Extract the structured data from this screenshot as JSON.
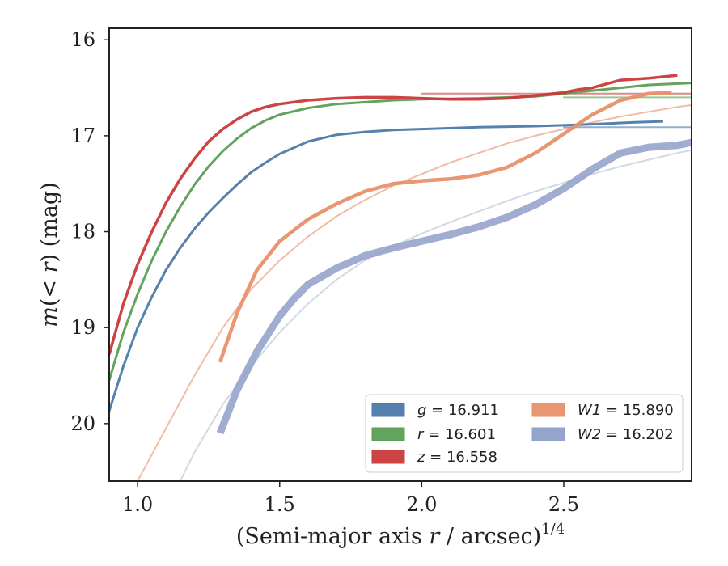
{
  "chart_data": {
    "type": "line",
    "title": "",
    "xlabel": "(Semi-major axis r / arcsec)",
    "xlabel_var": "r",
    "xlabel_exponent": "1/4",
    "ylabel": "m(< r) (mag)",
    "xlim": [
      0.9,
      2.95
    ],
    "ylim": [
      20.6,
      15.88
    ],
    "y_inverted": true,
    "xticks": [
      1.0,
      1.5,
      2.0,
      2.5
    ],
    "xtick_labels": [
      "1.0",
      "1.5",
      "2.0",
      "2.5"
    ],
    "yticks": [
      16,
      17,
      18,
      19,
      20
    ],
    "ytick_labels": [
      "16",
      "17",
      "18",
      "19",
      "20"
    ],
    "grid": false,
    "legend_placement": "lower-right",
    "series": [
      {
        "name": "g = 16.911",
        "band": "g",
        "mag": "16.911",
        "color": "#4c7aa8",
        "x": [
          0.9,
          0.95,
          1.0,
          1.05,
          1.1,
          1.15,
          1.2,
          1.25,
          1.3,
          1.35,
          1.4,
          1.45,
          1.5,
          1.6,
          1.7,
          1.8,
          1.9,
          2.0,
          2.2,
          2.4,
          2.6,
          2.75,
          2.85
        ],
        "y": [
          19.87,
          19.4,
          19.0,
          18.68,
          18.4,
          18.17,
          17.97,
          17.8,
          17.65,
          17.51,
          17.38,
          17.28,
          17.19,
          17.06,
          16.99,
          16.96,
          16.94,
          16.93,
          16.91,
          16.9,
          16.88,
          16.86,
          16.85
        ]
      },
      {
        "name": "r = 16.601",
        "band": "r",
        "mag": "16.601",
        "color": "#5a9e55",
        "x": [
          0.9,
          0.95,
          1.0,
          1.05,
          1.1,
          1.15,
          1.2,
          1.25,
          1.3,
          1.35,
          1.4,
          1.45,
          1.5,
          1.6,
          1.7,
          1.8,
          1.9,
          2.0,
          2.2,
          2.4,
          2.6,
          2.8,
          2.95
        ],
        "y": [
          19.55,
          19.05,
          18.65,
          18.3,
          18.0,
          17.74,
          17.51,
          17.32,
          17.16,
          17.03,
          16.92,
          16.84,
          16.78,
          16.71,
          16.67,
          16.65,
          16.63,
          16.62,
          16.61,
          16.59,
          16.53,
          16.47,
          16.45
        ]
      },
      {
        "name": "z = 16.558",
        "band": "z",
        "mag": "16.558",
        "color": "#c93a3a",
        "x": [
          0.9,
          0.95,
          1.0,
          1.05,
          1.1,
          1.15,
          1.2,
          1.25,
          1.3,
          1.35,
          1.4,
          1.45,
          1.5,
          1.6,
          1.7,
          1.8,
          1.9,
          2.0,
          2.1,
          2.2,
          2.3,
          2.4,
          2.5,
          2.55,
          2.6,
          2.65,
          2.7,
          2.8,
          2.9
        ],
        "y": [
          19.28,
          18.75,
          18.34,
          18.0,
          17.7,
          17.45,
          17.24,
          17.06,
          16.93,
          16.83,
          16.75,
          16.7,
          16.67,
          16.63,
          16.61,
          16.6,
          16.6,
          16.61,
          16.62,
          16.62,
          16.61,
          16.58,
          16.55,
          16.52,
          16.5,
          16.46,
          16.42,
          16.4,
          16.37
        ]
      },
      {
        "name": "W1 = 15.890",
        "band": "W1",
        "mag": "15.890",
        "color": "#e8906a",
        "x": [
          1.29,
          1.35,
          1.42,
          1.5,
          1.6,
          1.7,
          1.8,
          1.9,
          2.0,
          2.1,
          2.2,
          2.3,
          2.4,
          2.5,
          2.6,
          2.7,
          2.8,
          2.88
        ],
        "y": [
          19.36,
          18.85,
          18.4,
          18.1,
          17.87,
          17.71,
          17.58,
          17.5,
          17.47,
          17.45,
          17.41,
          17.33,
          17.18,
          16.98,
          16.78,
          16.63,
          16.56,
          16.55
        ]
      },
      {
        "name": "W2 = 16.202",
        "band": "W2",
        "mag": "16.202",
        "color": "#8f9fc8",
        "x": [
          1.29,
          1.35,
          1.42,
          1.5,
          1.55,
          1.6,
          1.7,
          1.8,
          1.9,
          2.0,
          2.1,
          2.2,
          2.3,
          2.4,
          2.5,
          2.6,
          2.7,
          2.8,
          2.9,
          2.95
        ],
        "y": [
          20.1,
          19.65,
          19.25,
          18.88,
          18.7,
          18.55,
          18.38,
          18.25,
          18.17,
          18.1,
          18.03,
          17.95,
          17.85,
          17.72,
          17.55,
          17.35,
          17.18,
          17.12,
          17.1,
          17.07
        ]
      }
    ],
    "models": [
      {
        "band": "g",
        "color": "#4c7aa8",
        "x": [
          2.5,
          2.95
        ],
        "y": [
          16.91,
          16.91
        ]
      },
      {
        "band": "r",
        "color": "#5a9e55",
        "x": [
          2.5,
          2.95
        ],
        "y": [
          16.6,
          16.6
        ]
      },
      {
        "band": "z",
        "color": "#c93a3a",
        "x": [
          2.0,
          2.95
        ],
        "y": [
          16.56,
          16.56
        ]
      },
      {
        "band": "W1",
        "color": "#e8906a",
        "x": [
          1.0,
          1.1,
          1.2,
          1.3,
          1.4,
          1.5,
          1.6,
          1.7,
          1.8,
          1.9,
          2.0,
          2.1,
          2.2,
          2.3,
          2.4,
          2.5,
          2.6,
          2.7,
          2.8,
          2.9,
          2.95
        ],
        "y": [
          20.6,
          20.05,
          19.5,
          19.0,
          18.6,
          18.3,
          18.05,
          17.84,
          17.67,
          17.52,
          17.4,
          17.28,
          17.18,
          17.08,
          17.0,
          16.93,
          16.86,
          16.8,
          16.75,
          16.7,
          16.68
        ]
      },
      {
        "band": "W2",
        "color": "#b3bfd4",
        "x": [
          1.15,
          1.2,
          1.3,
          1.4,
          1.5,
          1.6,
          1.7,
          1.8,
          1.9,
          2.0,
          2.1,
          2.2,
          2.3,
          2.4,
          2.5,
          2.6,
          2.7,
          2.8,
          2.9,
          2.95
        ],
        "y": [
          20.6,
          20.3,
          19.8,
          19.4,
          19.05,
          18.75,
          18.5,
          18.3,
          18.15,
          18.02,
          17.9,
          17.79,
          17.68,
          17.58,
          17.49,
          17.4,
          17.32,
          17.25,
          17.18,
          17.15
        ]
      }
    ]
  }
}
